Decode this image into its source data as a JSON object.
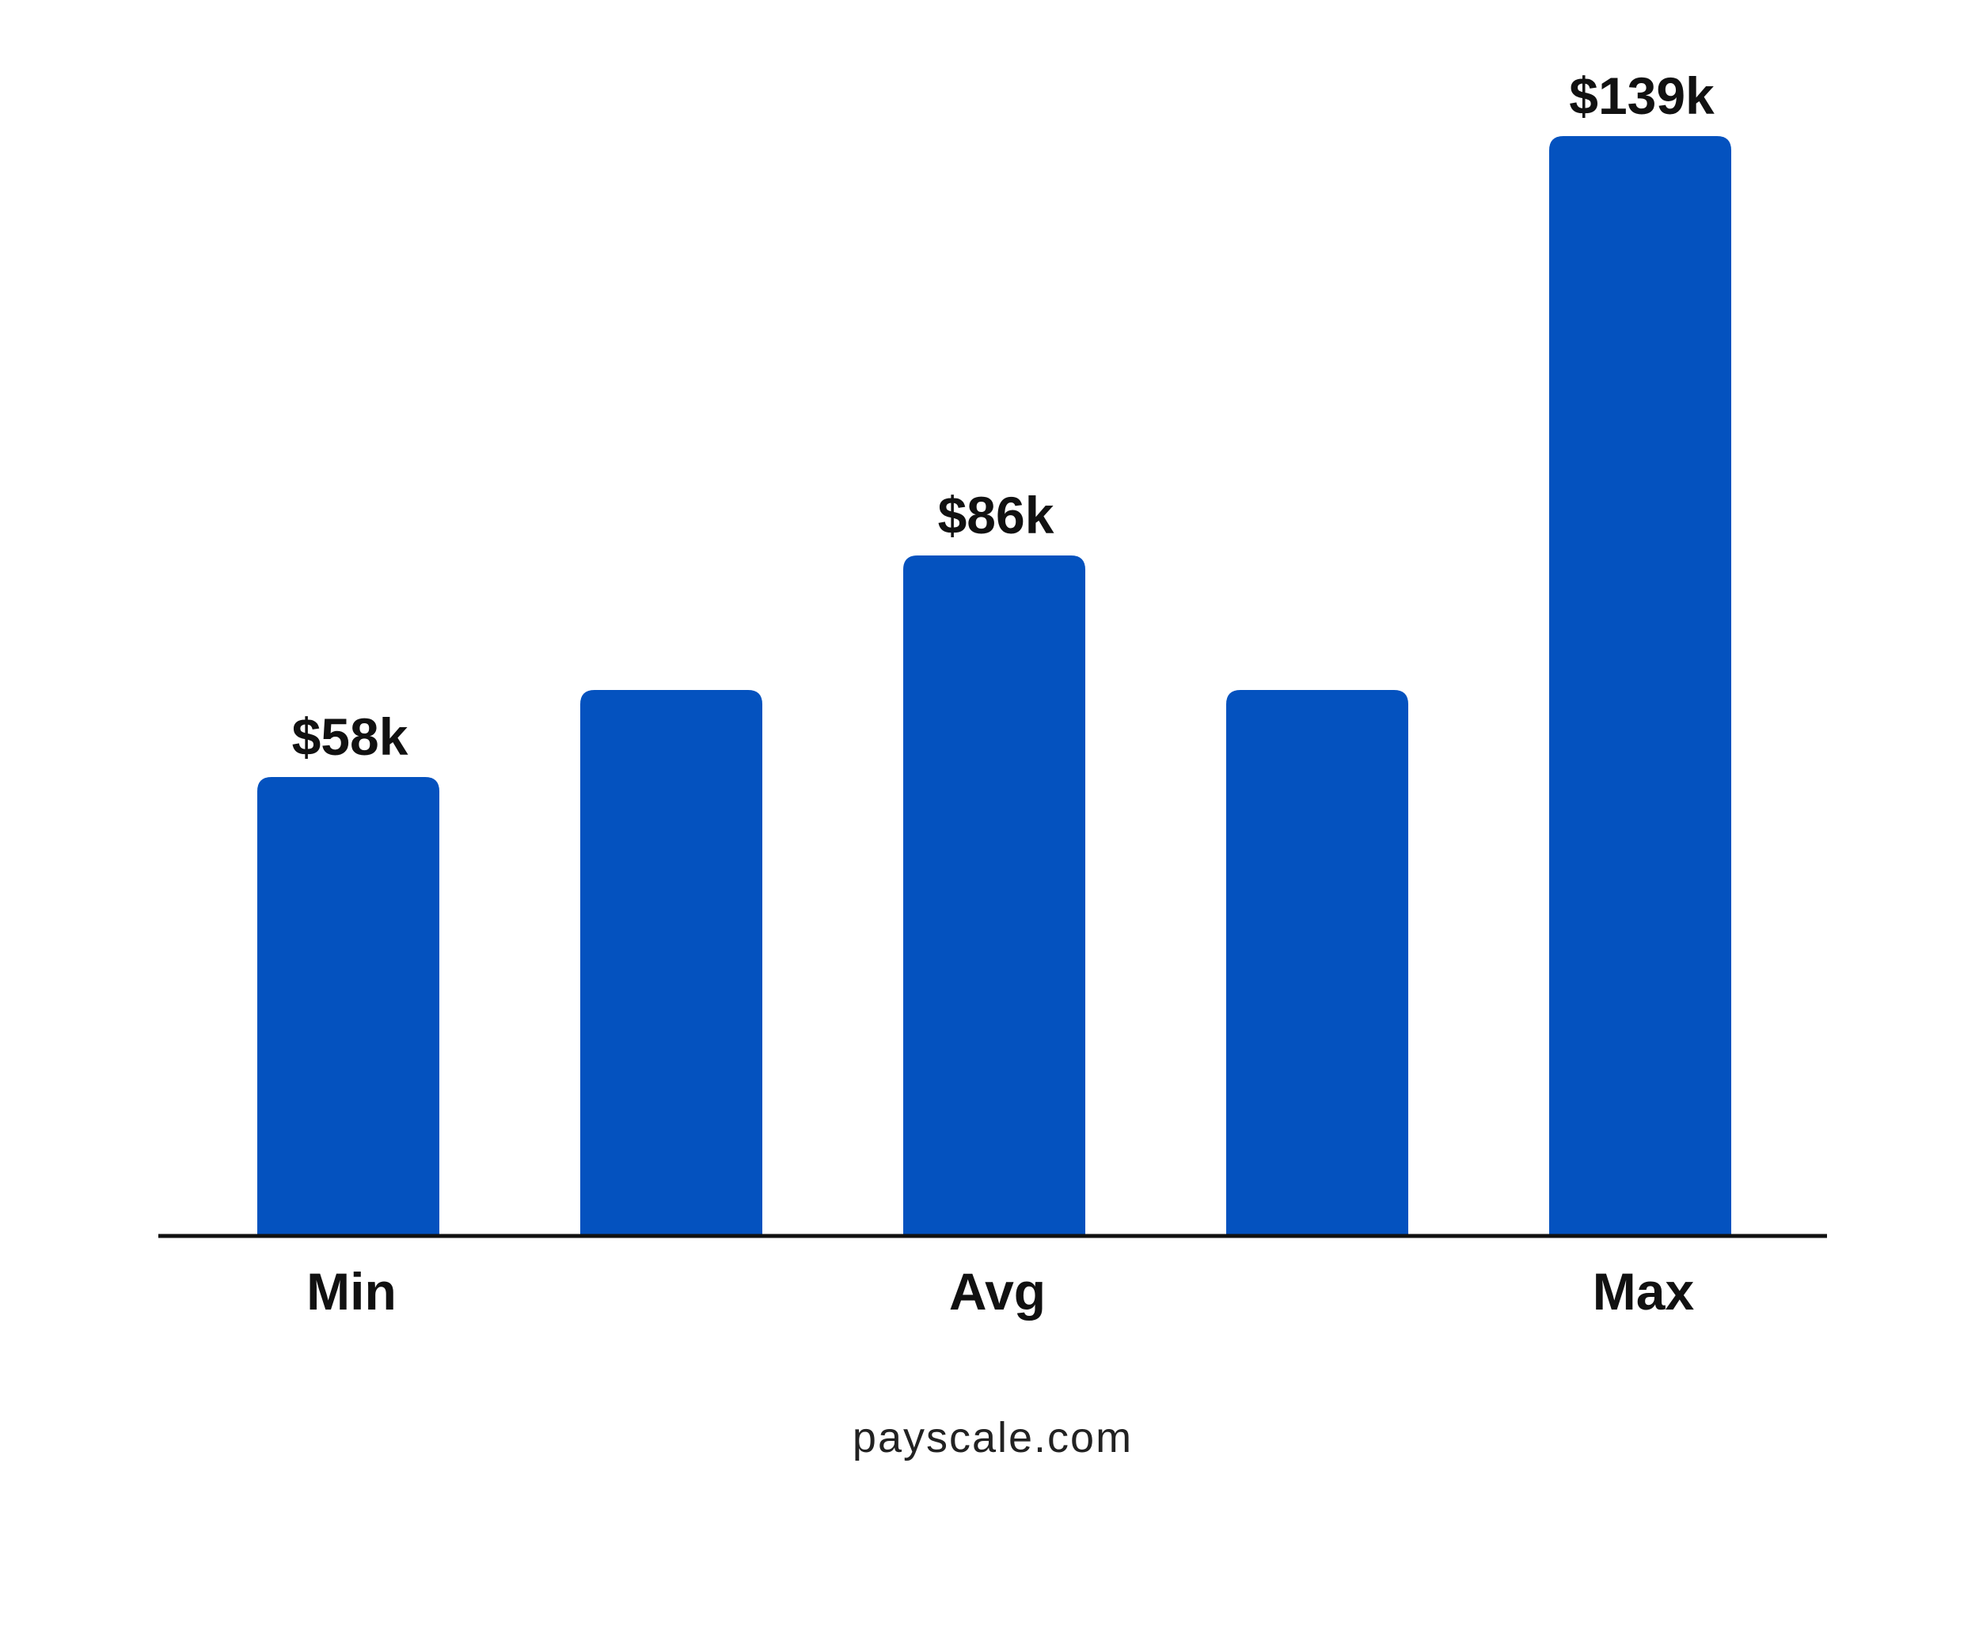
{
  "chart_data": {
    "type": "bar",
    "categories": [
      "Min",
      "",
      "Avg",
      "",
      "Max"
    ],
    "values": [
      58,
      69,
      86,
      69,
      139
    ],
    "value_labels": [
      "$58k",
      "",
      "$86k",
      "",
      "$139k"
    ],
    "title": "",
    "xlabel": "",
    "ylabel": "",
    "ylim": [
      0,
      140
    ],
    "grid": false,
    "legend": "none"
  },
  "source": "payscale.com",
  "colors": {
    "bar": "#0452BF",
    "axis": "#111111",
    "text": "#111111",
    "background": "#ffffff"
  }
}
